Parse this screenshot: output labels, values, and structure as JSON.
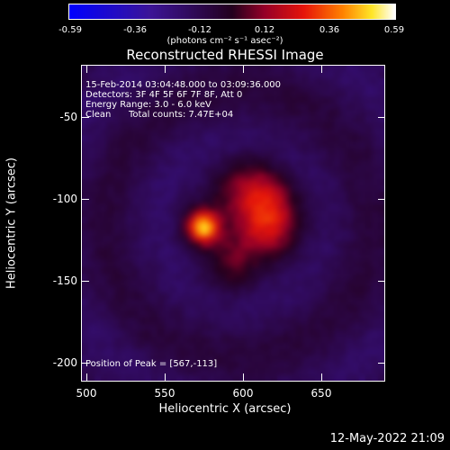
{
  "colorbar": {
    "ticks": [
      "-0.59",
      "-0.36",
      "-0.12",
      "0.12",
      "0.36",
      "0.59"
    ],
    "unit_label": "(photons cm⁻² s⁻¹ asec⁻²)"
  },
  "title": "Reconstructed RHESSI Image",
  "info": {
    "line1": "15-Feb-2014 03:04:48.000 to 03:09:36.000",
    "line2": "Detectors: 3F 4F 5F 6F 7F 8F, Att 0",
    "line3": "Energy Range: 3.0 - 6.0 keV",
    "line4_left": "Clean",
    "line4_right": "Total counts: 7.47E+04",
    "peak": "Position of Peak = [567,-113]"
  },
  "axes": {
    "xlabel": "Heliocentric X (arcsec)",
    "ylabel": "Heliocentric Y (arcsec)",
    "xticks": [
      "500",
      "550",
      "600",
      "650"
    ],
    "yticks": [
      "-50",
      "-100",
      "-150",
      "-200"
    ]
  },
  "timestamp": "12-May-2022 21:09",
  "chart_data": {
    "type": "heatmap",
    "title": "Reconstructed RHESSI Image",
    "xlabel": "Heliocentric X (arcsec)",
    "ylabel": "Heliocentric Y (arcsec)",
    "xlim": [
      489,
      684
    ],
    "ylim": [
      -212,
      -9
    ],
    "zlim": [
      -0.59,
      0.59
    ],
    "colormap": "rainbow",
    "peak": [
      567,
      -113
    ],
    "sources": [
      {
        "x": 567,
        "y": -113,
        "amplitude": 0.59,
        "sigma": 7
      },
      {
        "x": 608,
        "y": -108,
        "amplitude": 0.33,
        "sigma": 16
      },
      {
        "x": 600,
        "y": -85,
        "amplitude": 0.16,
        "sigma": 14
      },
      {
        "x": 585,
        "y": -140,
        "amplitude": 0.13,
        "sigma": 12
      }
    ],
    "total_counts": "7.47E+04"
  }
}
